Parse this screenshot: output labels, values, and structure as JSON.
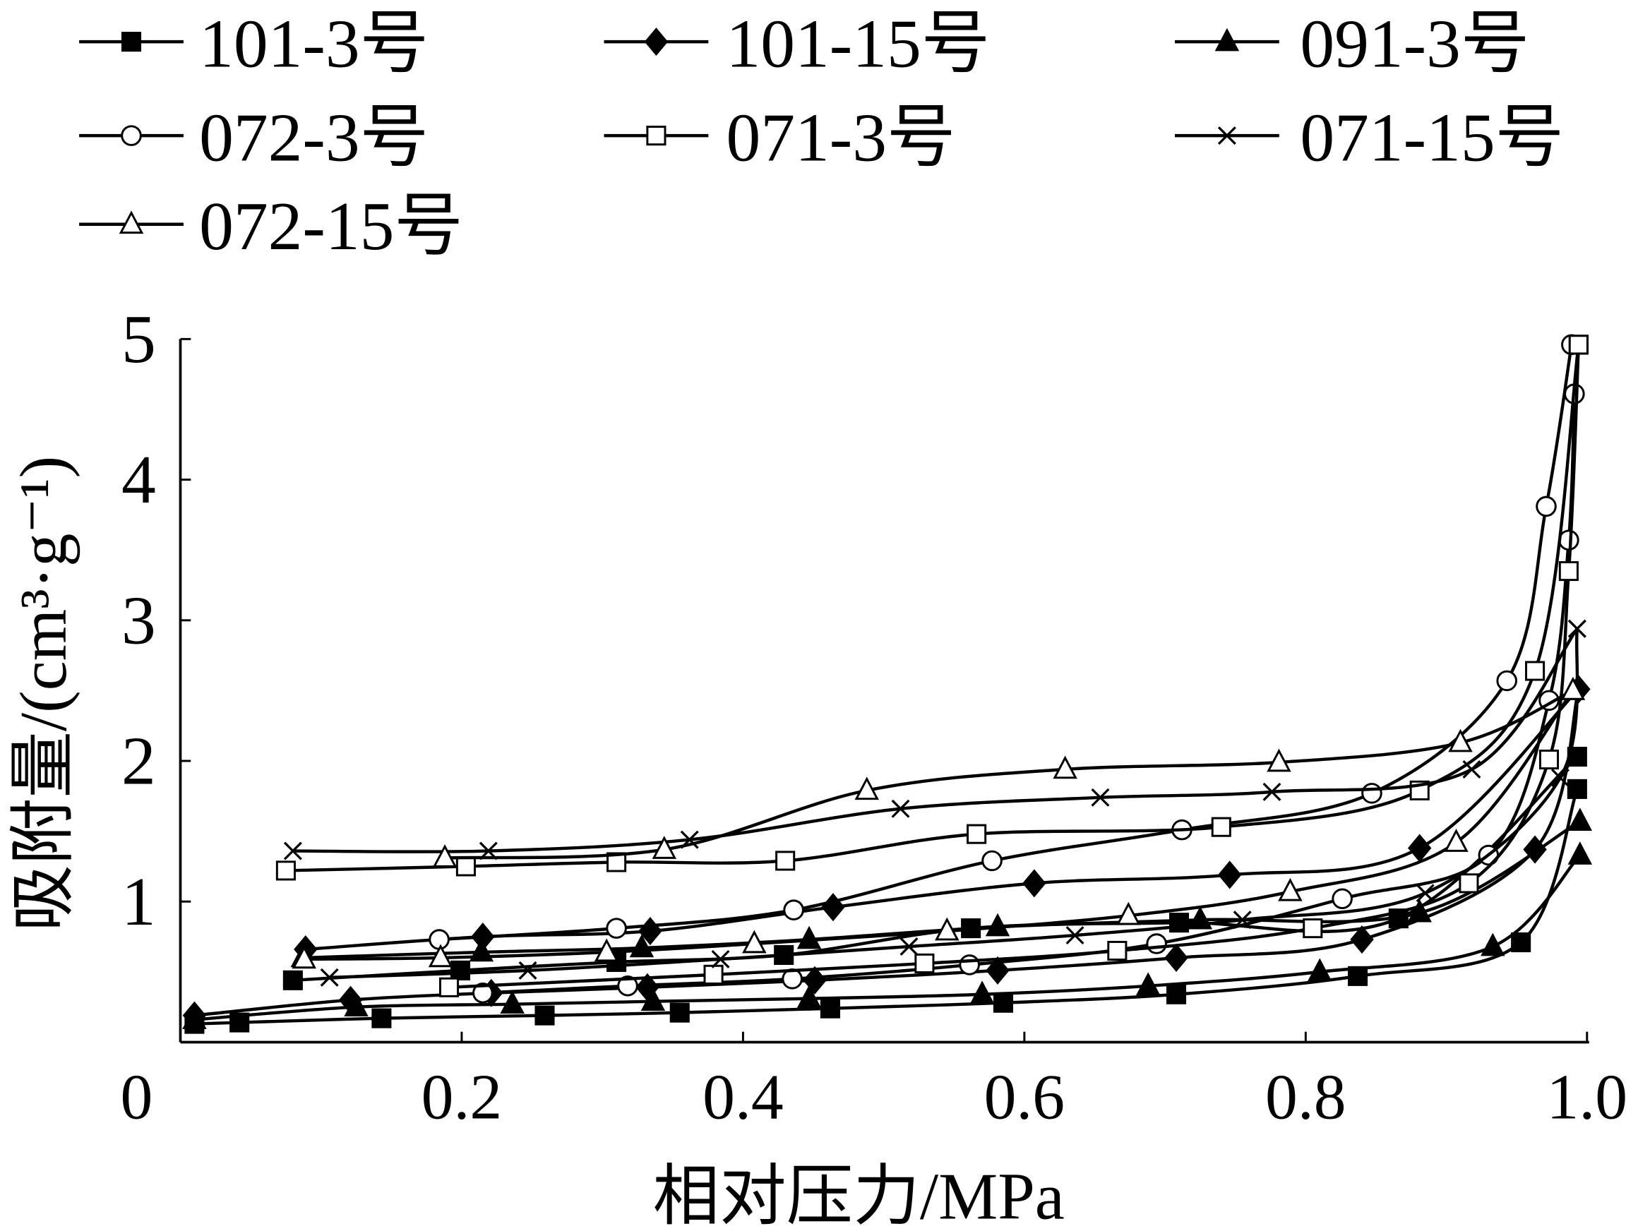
{
  "chart_data": {
    "type": "line",
    "title": "",
    "xlabel": "相对压力/MPa",
    "ylabel": "吸附量/(cm³·g⁻¹)",
    "xlim": [
      0,
      1.0
    ],
    "ylim": [
      0,
      5
    ],
    "xticks": [
      "0",
      "0.2",
      "0.4",
      "0.6",
      "0.8",
      "1.0"
    ],
    "xtick_values": [
      0,
      0.2,
      0.4,
      0.6,
      0.8,
      1.0
    ],
    "yticks": [
      "1",
      "2",
      "3",
      "4",
      "5"
    ],
    "ytick_values": [
      1,
      2,
      3,
      4,
      5
    ],
    "grid": false,
    "legend_placement": "top",
    "series": [
      {
        "name": "101-3号",
        "marker": "filled-square",
        "adsorption": {
          "x": [
            0.01,
            0.042,
            0.143,
            0.259,
            0.355,
            0.462,
            0.585,
            0.708,
            0.837,
            0.953,
            0.993
          ],
          "y": [
            0.13,
            0.14,
            0.17,
            0.19,
            0.21,
            0.24,
            0.28,
            0.34,
            0.47,
            0.71,
            1.8
          ]
        },
        "desorption": {
          "x": [
            0.08,
            0.199,
            0.31,
            0.429,
            0.562,
            0.71,
            0.866,
            0.993
          ],
          "y": [
            0.44,
            0.51,
            0.57,
            0.62,
            0.81,
            0.85,
            0.88,
            2.03
          ]
        }
      },
      {
        "name": "101-15号",
        "marker": "filled-diamond",
        "adsorption": {
          "x": [
            0.01,
            0.121,
            0.221,
            0.332,
            0.451,
            0.581,
            0.708,
            0.84,
            0.963,
            0.994
          ],
          "y": [
            0.19,
            0.3,
            0.35,
            0.39,
            0.44,
            0.51,
            0.6,
            0.73,
            1.37,
            2.51
          ]
        },
        "desorption": {
          "x": [
            0.089,
            0.215,
            0.334,
            0.464,
            0.607,
            0.746,
            0.881,
            0.994
          ],
          "y": [
            0.66,
            0.75,
            0.79,
            0.96,
            1.13,
            1.19,
            1.38,
            2.51
          ]
        }
      },
      {
        "name": "091-3号",
        "marker": "filled-triangle",
        "adsorption": {
          "x": [
            0.01,
            0.125,
            0.236,
            0.336,
            0.447,
            0.57,
            0.688,
            0.81,
            0.933,
            0.995
          ],
          "y": [
            0.16,
            0.25,
            0.27,
            0.29,
            0.31,
            0.34,
            0.4,
            0.5,
            0.68,
            1.33
          ]
        },
        "desorption": {
          "x": [
            0.087,
            0.214,
            0.328,
            0.447,
            0.581,
            0.725,
            0.881,
            0.995
          ],
          "y": [
            0.6,
            0.64,
            0.67,
            0.73,
            0.82,
            0.87,
            0.92,
            1.57
          ]
        }
      },
      {
        "name": "072-3号",
        "marker": "open-circle",
        "adsorption": {
          "x": [
            0.215,
            0.318,
            0.435,
            0.561,
            0.694,
            0.826,
            0.93,
            0.973,
            0.987,
            0.991
          ],
          "y": [
            0.35,
            0.4,
            0.45,
            0.55,
            0.7,
            1.02,
            1.33,
            2.43,
            3.57,
            4.61
          ]
        },
        "desorption": {
          "x": [
            0.184,
            0.31,
            0.436,
            0.577,
            0.712,
            0.847,
            0.943,
            0.971,
            0.989
          ],
          "y": [
            0.73,
            0.81,
            0.94,
            1.29,
            1.51,
            1.77,
            2.57,
            3.81,
            4.96
          ]
        }
      },
      {
        "name": "071-3号",
        "marker": "open-square",
        "adsorption": {
          "x": [
            0.191,
            0.379,
            0.529,
            0.666,
            0.805,
            0.916,
            0.973,
            0.987,
            0.994
          ],
          "y": [
            0.39,
            0.48,
            0.56,
            0.65,
            0.81,
            1.13,
            2.01,
            3.35,
            4.96
          ]
        },
        "desorption": {
          "x": [
            0.075,
            0.203,
            0.31,
            0.43,
            0.566,
            0.74,
            0.881,
            0.963,
            0.994
          ],
          "y": [
            1.22,
            1.25,
            1.28,
            1.29,
            1.48,
            1.53,
            1.79,
            2.64,
            4.96
          ]
        }
      },
      {
        "name": "071-15号",
        "marker": "cross",
        "adsorption": {
          "x": [
            0.106,
            0.247,
            0.384,
            0.518,
            0.636,
            0.755,
            0.885,
            0.981,
            0.993
          ],
          "y": [
            0.46,
            0.51,
            0.59,
            0.68,
            0.76,
            0.87,
            1.06,
            1.88,
            2.94
          ]
        },
        "desorption": {
          "x": [
            0.08,
            0.219,
            0.362,
            0.512,
            0.654,
            0.776,
            0.918,
            0.993
          ],
          "y": [
            1.36,
            1.36,
            1.44,
            1.66,
            1.74,
            1.78,
            1.94,
            2.94
          ]
        }
      },
      {
        "name": "072-15号",
        "marker": "open-triangle",
        "adsorption": {
          "x": [
            0.088,
            0.185,
            0.303,
            0.408,
            0.545,
            0.674,
            0.789,
            0.907,
            0.99
          ],
          "y": [
            0.59,
            0.6,
            0.64,
            0.7,
            0.79,
            0.9,
            1.07,
            1.42,
            2.5
          ]
        },
        "desorption": {
          "x": [
            0.188,
            0.344,
            0.488,
            0.629,
            0.781,
            0.91,
            0.99
          ],
          "y": [
            1.31,
            1.37,
            1.79,
            1.94,
            1.99,
            2.13,
            2.5
          ]
        }
      }
    ]
  }
}
